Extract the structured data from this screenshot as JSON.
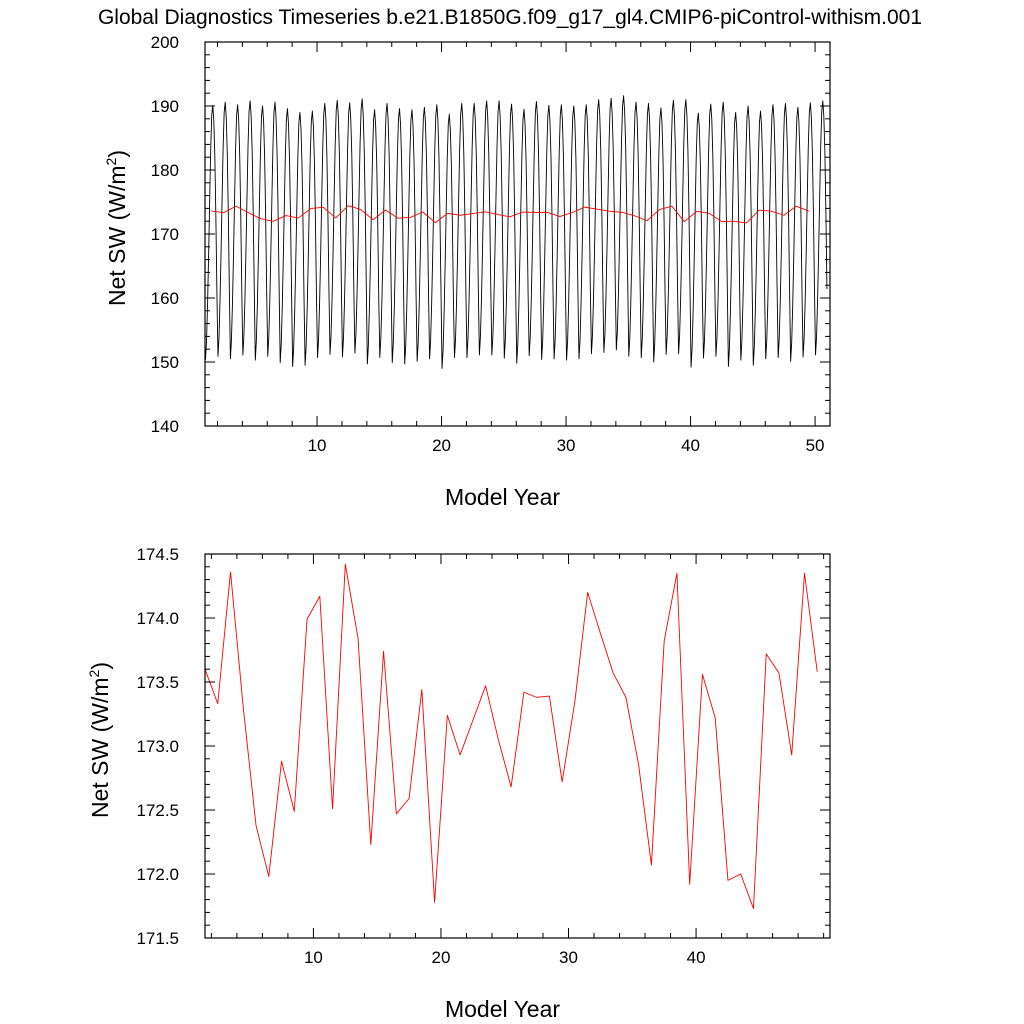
{
  "title": "Global Diagnostics Timeseries b.e21.B1850G.f09_g17_gl4.CMIP6-piControl-withism.001",
  "colors": {
    "monthly": "#000000",
    "annual": "#ff0000",
    "axis": "#000000"
  },
  "chart_data": [
    {
      "type": "line",
      "xlabel": "Model Year",
      "ylabel": {
        "base": "Net SW (W/m",
        "superscript": "2",
        "close": ")"
      },
      "xlim": [
        1,
        51.2
      ],
      "ylim": [
        140,
        200
      ],
      "xticks": [
        10,
        20,
        30,
        40,
        50
      ],
      "xtick_labels": [
        "10",
        "20",
        "30",
        "40",
        "50"
      ],
      "yticks": [
        140,
        150,
        160,
        170,
        180,
        190,
        200
      ],
      "ytick_labels": [
        "140",
        "150",
        "160",
        "170",
        "180",
        "190",
        "200"
      ],
      "series": [
        {
          "kind": "monthly",
          "x_start": 1.04,
          "x_step": 0.08333,
          "annual_cycle": [
            150.3,
            153.2,
            159.0,
            166.6,
            175.0,
            183.0,
            188.4,
            190.0,
            187.6,
            182.0,
            172.5,
            160.6
          ],
          "year_offset": [
            0.1,
            0.6,
            0.2,
            0.8,
            0.0,
            0.6,
            -0.4,
            -1.0,
            -0.8,
            0.4,
            0.9,
            0.5,
            1.1,
            -0.6,
            0.4,
            -0.4,
            -0.6,
            -0.2,
            0.2,
            -1.3,
            0.4,
            0.4,
            0.8,
            0.8,
            0.3,
            -0.5,
            0.7,
            0.1,
            0.2,
            0.0,
            0.2,
            1.0,
            1.2,
            1.6,
            0.6,
            0.4,
            -0.3,
            0.9,
            1.0,
            -1.1,
            0.3,
            0.6,
            -1.0,
            0.0,
            -0.8,
            0.2,
            0.4,
            -0.2,
            0.5,
            0.8
          ]
        },
        {
          "kind": "annual",
          "x_start": 1.5,
          "x_step": 1,
          "values": [
            173.6,
            173.33,
            174.36,
            173.3,
            172.38,
            171.98,
            172.88,
            172.49,
            173.99,
            174.17,
            172.51,
            174.42,
            173.84,
            172.23,
            173.74,
            172.47,
            172.59,
            173.44,
            171.78,
            173.24,
            172.93,
            173.2,
            173.47,
            173.05,
            172.68,
            173.42,
            173.38,
            173.39,
            172.72,
            173.35,
            174.2,
            173.88,
            173.57,
            173.38,
            172.85,
            172.07,
            173.82,
            174.35,
            171.92,
            173.56,
            173.22,
            171.95,
            172.0,
            171.73,
            173.72,
            173.57,
            172.93,
            174.35,
            173.58
          ]
        }
      ]
    },
    {
      "type": "line",
      "xlabel": "Model Year",
      "ylabel": {
        "base": "Net SW (W/m",
        "superscript": "2",
        "close": ")"
      },
      "xlim": [
        1.5,
        50.5
      ],
      "ylim": [
        171.5,
        174.5
      ],
      "xticks": [
        10,
        20,
        30,
        40
      ],
      "xtick_labels": [
        "10",
        "20",
        "30",
        "40"
      ],
      "yticks": [
        171.5,
        172.0,
        172.5,
        173.0,
        173.5,
        174.0,
        174.5
      ],
      "ytick_labels": [
        "171.5",
        "172.0",
        "172.5",
        "173.0",
        "173.5",
        "174.0",
        "174.5"
      ],
      "series": [
        {
          "kind": "annual",
          "x_start": 1.5,
          "x_step": 1,
          "values": [
            173.6,
            173.33,
            174.36,
            173.3,
            172.38,
            171.98,
            172.88,
            172.49,
            173.99,
            174.17,
            172.51,
            174.42,
            173.84,
            172.23,
            173.74,
            172.47,
            172.59,
            173.44,
            171.78,
            173.24,
            172.93,
            173.2,
            173.47,
            173.05,
            172.68,
            173.42,
            173.38,
            173.39,
            172.72,
            173.35,
            174.2,
            173.88,
            173.57,
            173.38,
            172.85,
            172.07,
            173.82,
            174.35,
            171.92,
            173.56,
            173.22,
            171.95,
            172.0,
            171.73,
            173.72,
            173.57,
            172.93,
            174.35,
            173.58
          ]
        }
      ]
    }
  ]
}
